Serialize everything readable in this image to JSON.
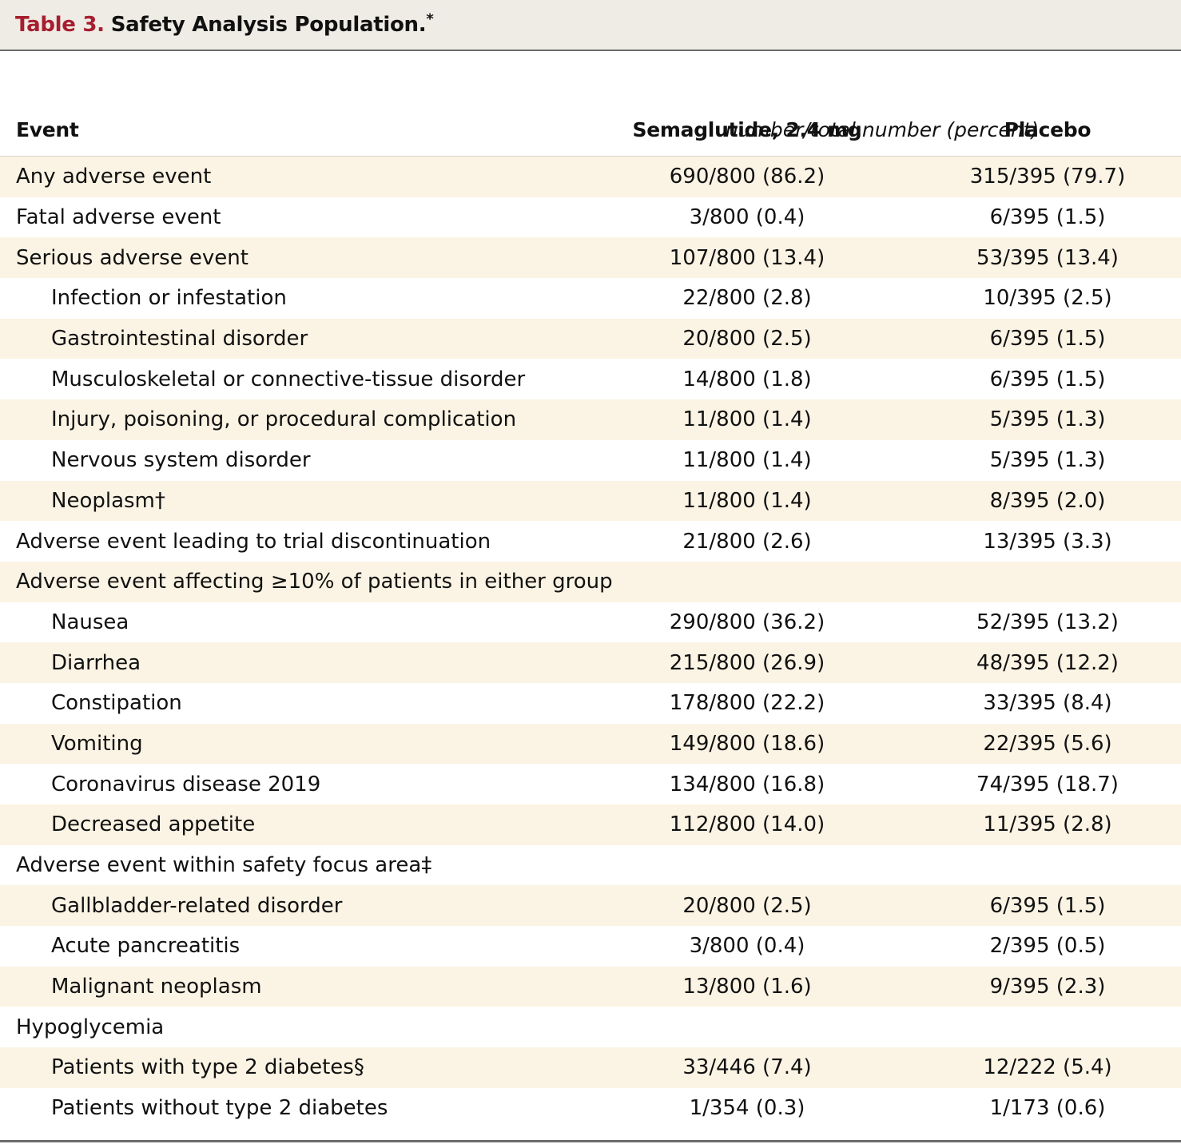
{
  "table": {
    "title_number": "Table 3.",
    "title_text": "Safety Analysis Population.",
    "title_mark": "*",
    "columns": {
      "event": "Event",
      "semaglutide": "Semaglutide, 2.4 mg",
      "placebo": "Placebo"
    },
    "units": "number/total number (percent)",
    "rows": [
      {
        "event": "Any adverse event",
        "semaglutide": "690/800 (86.2)",
        "placebo": "315/395 (79.7)",
        "indent": false,
        "shaded": true
      },
      {
        "event": "Fatal adverse event",
        "semaglutide": "3/800 (0.4)",
        "placebo": "6/395 (1.5)",
        "indent": false,
        "shaded": false
      },
      {
        "event": "Serious adverse event",
        "semaglutide": "107/800 (13.4)",
        "placebo": "53/395 (13.4)",
        "indent": false,
        "shaded": true
      },
      {
        "event": "Infection or infestation",
        "semaglutide": "22/800 (2.8)",
        "placebo": "10/395 (2.5)",
        "indent": true,
        "shaded": false
      },
      {
        "event": "Gastrointestinal disorder",
        "semaglutide": "20/800 (2.5)",
        "placebo": "6/395 (1.5)",
        "indent": true,
        "shaded": true
      },
      {
        "event": "Musculoskeletal or connective-tissue disorder",
        "semaglutide": "14/800 (1.8)",
        "placebo": "6/395 (1.5)",
        "indent": true,
        "shaded": false
      },
      {
        "event": "Injury, poisoning, or procedural complication",
        "semaglutide": "11/800 (1.4)",
        "placebo": "5/395 (1.3)",
        "indent": true,
        "shaded": true
      },
      {
        "event": "Nervous system disorder",
        "semaglutide": "11/800 (1.4)",
        "placebo": "5/395 (1.3)",
        "indent": true,
        "shaded": false
      },
      {
        "event": "Neoplasm†",
        "semaglutide": "11/800 (1.4)",
        "placebo": "8/395 (2.0)",
        "indent": true,
        "shaded": true
      },
      {
        "event": "Adverse event leading to trial discontinuation",
        "semaglutide": "21/800 (2.6)",
        "placebo": "13/395 (3.3)",
        "indent": false,
        "shaded": false
      },
      {
        "event": "Adverse event affecting ≥10% of patients in either group",
        "semaglutide": "",
        "placebo": "",
        "indent": false,
        "shaded": true
      },
      {
        "event": "Nausea",
        "semaglutide": "290/800 (36.2)",
        "placebo": "52/395 (13.2)",
        "indent": true,
        "shaded": false
      },
      {
        "event": "Diarrhea",
        "semaglutide": "215/800 (26.9)",
        "placebo": "48/395 (12.2)",
        "indent": true,
        "shaded": true
      },
      {
        "event": "Constipation",
        "semaglutide": "178/800 (22.2)",
        "placebo": "33/395 (8.4)",
        "indent": true,
        "shaded": false
      },
      {
        "event": "Vomiting",
        "semaglutide": "149/800 (18.6)",
        "placebo": "22/395 (5.6)",
        "indent": true,
        "shaded": true
      },
      {
        "event": "Coronavirus disease 2019",
        "semaglutide": "134/800 (16.8)",
        "placebo": "74/395 (18.7)",
        "indent": true,
        "shaded": false
      },
      {
        "event": "Decreased appetite",
        "semaglutide": "112/800 (14.0)",
        "placebo": "11/395 (2.8)",
        "indent": true,
        "shaded": true
      },
      {
        "event": "Adverse event within safety focus area‡",
        "semaglutide": "",
        "placebo": "",
        "indent": false,
        "shaded": false
      },
      {
        "event": "Gallbladder-related disorder",
        "semaglutide": "20/800 (2.5)",
        "placebo": "6/395 (1.5)",
        "indent": true,
        "shaded": true
      },
      {
        "event": "Acute pancreatitis",
        "semaglutide": "3/800 (0.4)",
        "placebo": "2/395 (0.5)",
        "indent": true,
        "shaded": false
      },
      {
        "event": "Malignant neoplasm",
        "semaglutide": "13/800 (1.6)",
        "placebo": "9/395 (2.3)",
        "indent": true,
        "shaded": true
      },
      {
        "event": "Hypoglycemia",
        "semaglutide": "",
        "placebo": "",
        "indent": false,
        "shaded": false
      },
      {
        "event": "Patients with type 2 diabetes§",
        "semaglutide": "33/446 (7.4)",
        "placebo": "12/222 (5.4)",
        "indent": true,
        "shaded": true
      },
      {
        "event": "Patients without type 2 diabetes",
        "semaglutide": "1/354 (0.3)",
        "placebo": "1/173 (0.6)",
        "indent": true,
        "shaded": false
      }
    ],
    "colors": {
      "title_number": "#a61e2f",
      "title_bar_bg": "#efebe5",
      "shaded_row_bg": "#fbf4e4",
      "rule": "#6b6b6b"
    }
  }
}
